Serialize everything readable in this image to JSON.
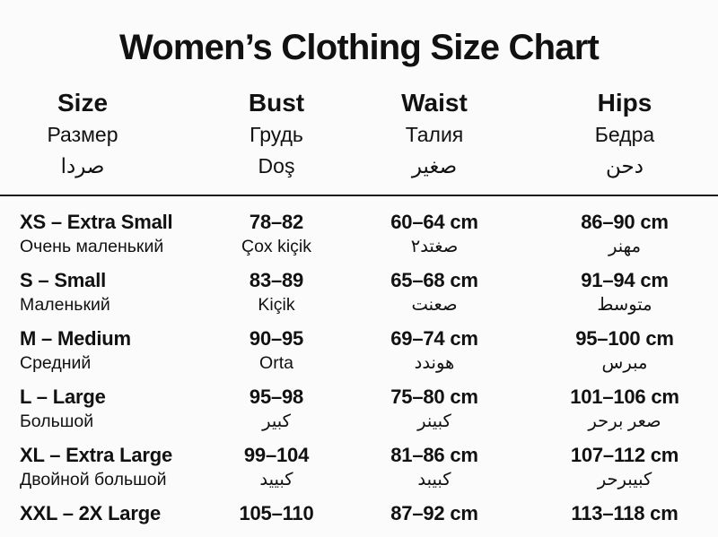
{
  "title": "Women’s Clothing Size Chart",
  "colors": {
    "background": "#fbfbfb",
    "text": "#111111",
    "divider": "#1c1c1c"
  },
  "header": {
    "columns": [
      {
        "en": "Size",
        "ru": "Размер",
        "ar": "صردا"
      },
      {
        "en": "Bust",
        "ru": "Грудь",
        "ar": "Doş"
      },
      {
        "en": "Waist",
        "ru": "Талия",
        "ar": "صغير"
      },
      {
        "en": "Hips",
        "ru": "Бедра",
        "ar": "دحن"
      }
    ]
  },
  "rows": [
    {
      "size": "XS – Extra Small",
      "size_sub": "Очень маленький",
      "bust": "78–82",
      "bust_sub": "Çox kiçik",
      "waist": "60–64 cm",
      "waist_sub": "صغتد٢",
      "hips": "86–90 cm",
      "hips_sub": "مهنر"
    },
    {
      "size": "S – Small",
      "size_sub": "Маленький",
      "bust": "83–89",
      "bust_sub": "Kiçik",
      "waist": "65–68 cm",
      "waist_sub": "صعنت",
      "hips": "91–94 cm",
      "hips_sub": "متوسط"
    },
    {
      "size": "M – Medium",
      "size_sub": "Средний",
      "bust": "90–95",
      "bust_sub": "Orta",
      "waist": "69–74 cm",
      "waist_sub": "هوندد",
      "hips": "95–100 cm",
      "hips_sub": "مبرس"
    },
    {
      "size": "L – Large",
      "size_sub": "Большой",
      "bust": "95–98",
      "bust_sub": "كبير",
      "waist": "75–80 cm",
      "waist_sub": "كبينر",
      "hips": "101–106 cm",
      "hips_sub": "صعر برحر"
    },
    {
      "size": "XL – Extra Large",
      "size_sub": "Двойной большой",
      "bust": "99–104",
      "bust_sub": "كبييد",
      "waist": "81–86 cm",
      "waist_sub": "كبيبد",
      "hips": "107–112 cm",
      "hips_sub": "كبيبرحر"
    },
    {
      "size": "XXL – 2X Large",
      "bust": "105–110",
      "waist": "87–92 cm",
      "hips": "113–118 cm"
    }
  ]
}
